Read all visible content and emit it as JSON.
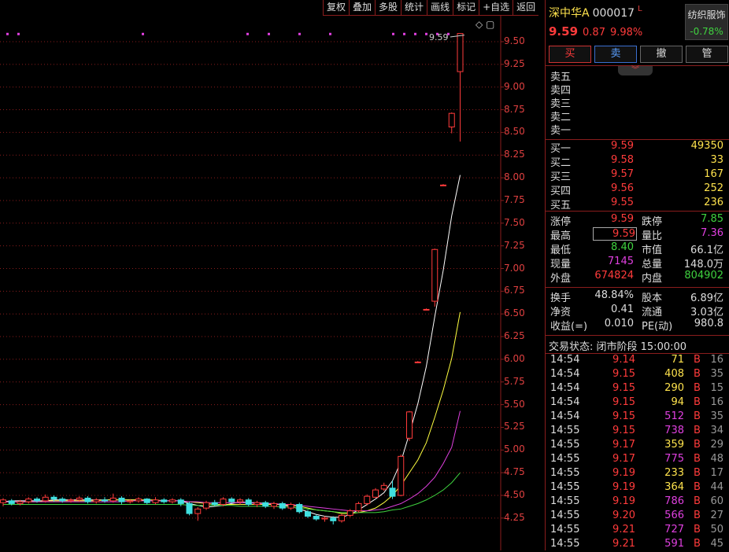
{
  "toolbar": [
    "复权",
    "叠加",
    "多股",
    "统计",
    "画线",
    "标记",
    "+自选",
    "返回"
  ],
  "axis": {
    "ticks": [
      "9.50",
      "9.25",
      "9.00",
      "8.75",
      "8.50",
      "8.25",
      "8.00",
      "7.75",
      "7.50",
      "7.25",
      "7.00",
      "6.75",
      "6.50",
      "6.25",
      "6.00",
      "5.75",
      "5.50",
      "5.25",
      "5.00",
      "4.75",
      "4.50",
      "4.25"
    ]
  },
  "chart": {
    "high_label": "9.59",
    "icons": "◇ ▢"
  },
  "chart_data": {
    "type": "candlestick",
    "ylim": [
      4.15,
      9.7
    ],
    "candles": [
      {
        "o": 4.42,
        "c": 4.45,
        "h": 4.47,
        "l": 4.38
      },
      {
        "o": 4.44,
        "c": 4.41,
        "h": 4.46,
        "l": 4.39
      },
      {
        "o": 4.41,
        "c": 4.43,
        "h": 4.45,
        "l": 4.39
      },
      {
        "o": 4.43,
        "c": 4.46,
        "h": 4.48,
        "l": 4.41
      },
      {
        "o": 4.46,
        "c": 4.44,
        "h": 4.48,
        "l": 4.42
      },
      {
        "o": 4.44,
        "c": 4.48,
        "h": 4.51,
        "l": 4.42
      },
      {
        "o": 4.48,
        "c": 4.46,
        "h": 4.5,
        "l": 4.43
      },
      {
        "o": 4.46,
        "c": 4.44,
        "h": 4.48,
        "l": 4.42
      },
      {
        "o": 4.44,
        "c": 4.45,
        "h": 4.47,
        "l": 4.42
      },
      {
        "o": 4.45,
        "c": 4.47,
        "h": 4.49,
        "l": 4.43
      },
      {
        "o": 4.47,
        "c": 4.43,
        "h": 4.49,
        "l": 4.41
      },
      {
        "o": 4.43,
        "c": 4.45,
        "h": 4.47,
        "l": 4.41
      },
      {
        "o": 4.45,
        "c": 4.44,
        "h": 4.48,
        "l": 4.42
      },
      {
        "o": 4.44,
        "c": 4.47,
        "h": 4.52,
        "l": 4.42
      },
      {
        "o": 4.47,
        "c": 4.43,
        "h": 4.49,
        "l": 4.4
      },
      {
        "o": 4.43,
        "c": 4.44,
        "h": 4.46,
        "l": 4.41
      },
      {
        "o": 4.44,
        "c": 4.46,
        "h": 4.48,
        "l": 4.42
      },
      {
        "o": 4.46,
        "c": 4.42,
        "h": 4.47,
        "l": 4.4
      },
      {
        "o": 4.42,
        "c": 4.45,
        "h": 4.48,
        "l": 4.4
      },
      {
        "o": 4.45,
        "c": 4.43,
        "h": 4.47,
        "l": 4.41
      },
      {
        "o": 4.43,
        "c": 4.45,
        "h": 4.47,
        "l": 4.41
      },
      {
        "o": 4.45,
        "c": 4.41,
        "h": 4.47,
        "l": 4.38
      },
      {
        "o": 4.41,
        "c": 4.3,
        "h": 4.43,
        "l": 4.28
      },
      {
        "o": 4.3,
        "c": 4.35,
        "h": 4.37,
        "l": 4.22
      },
      {
        "o": 4.36,
        "c": 4.42,
        "h": 4.44,
        "l": 4.34
      },
      {
        "o": 4.42,
        "c": 4.4,
        "h": 4.45,
        "l": 4.38
      },
      {
        "o": 4.4,
        "c": 4.46,
        "h": 4.48,
        "l": 4.38
      },
      {
        "o": 4.46,
        "c": 4.43,
        "h": 4.48,
        "l": 4.41
      },
      {
        "o": 4.43,
        "c": 4.45,
        "h": 4.47,
        "l": 4.4
      },
      {
        "o": 4.45,
        "c": 4.4,
        "h": 4.47,
        "l": 4.38
      },
      {
        "o": 4.4,
        "c": 4.42,
        "h": 4.44,
        "l": 4.37
      },
      {
        "o": 4.42,
        "c": 4.38,
        "h": 4.44,
        "l": 4.36
      },
      {
        "o": 4.38,
        "c": 4.41,
        "h": 4.43,
        "l": 4.35
      },
      {
        "o": 4.41,
        "c": 4.36,
        "h": 4.43,
        "l": 4.34
      },
      {
        "o": 4.36,
        "c": 4.4,
        "h": 4.42,
        "l": 4.34
      },
      {
        "o": 4.4,
        "c": 4.32,
        "h": 4.42,
        "l": 4.3
      },
      {
        "o": 4.32,
        "c": 4.27,
        "h": 4.34,
        "l": 4.25
      },
      {
        "o": 4.27,
        "c": 4.24,
        "h": 4.29,
        "l": 4.22
      },
      {
        "o": 4.24,
        "c": 4.25,
        "h": 4.27,
        "l": 4.21
      },
      {
        "o": 4.25,
        "c": 4.22,
        "h": 4.27,
        "l": 4.18
      },
      {
        "o": 4.22,
        "c": 4.28,
        "h": 4.3,
        "l": 4.2
      },
      {
        "o": 4.28,
        "c": 4.33,
        "h": 4.35,
        "l": 4.26
      },
      {
        "o": 4.33,
        "c": 4.41,
        "h": 4.43,
        "l": 4.31
      },
      {
        "o": 4.41,
        "c": 4.49,
        "h": 4.51,
        "l": 4.39
      },
      {
        "o": 4.48,
        "c": 4.56,
        "h": 4.58,
        "l": 4.47
      },
      {
        "o": 4.57,
        "c": 4.61,
        "h": 4.64,
        "l": 4.55
      },
      {
        "o": 4.58,
        "c": 4.49,
        "h": 4.66,
        "l": 4.46
      },
      {
        "o": 4.5,
        "c": 4.93,
        "h": 4.95,
        "l": 4.49
      },
      {
        "o": 5.13,
        "c": 5.42,
        "h": 5.43,
        "l": 5.1
      },
      {
        "o": 5.97,
        "c": 5.97,
        "h": 5.98,
        "l": 5.96
      },
      {
        "o": 6.55,
        "c": 6.55,
        "h": 6.56,
        "l": 6.54
      },
      {
        "o": 6.64,
        "c": 7.21,
        "h": 7.22,
        "l": 6.58
      },
      {
        "o": 7.92,
        "c": 7.92,
        "h": 7.93,
        "l": 7.91
      },
      {
        "o": 8.56,
        "c": 8.71,
        "h": 8.72,
        "l": 8.49
      },
      {
        "o": 9.17,
        "c": 9.59,
        "h": 9.59,
        "l": 8.4
      }
    ],
    "ma": [
      {
        "name": "MA5",
        "color": "#ffffff",
        "values": [
          4.43,
          4.44,
          4.44,
          4.44,
          4.44,
          4.44,
          4.45,
          4.45,
          4.45,
          4.45,
          4.45,
          4.45,
          4.45,
          4.45,
          4.45,
          4.45,
          4.45,
          4.44,
          4.44,
          4.44,
          4.44,
          4.44,
          4.41,
          4.39,
          4.37,
          4.38,
          4.39,
          4.41,
          4.43,
          4.42,
          4.42,
          4.41,
          4.41,
          4.39,
          4.38,
          4.35,
          4.32,
          4.29,
          4.27,
          4.26,
          4.26,
          4.29,
          4.34,
          4.4,
          4.46,
          4.53,
          4.66,
          4.87,
          5.18,
          5.51,
          5.92,
          6.47,
          6.98,
          7.58,
          8.03
        ]
      },
      {
        "name": "MA10",
        "color": "#ffff40",
        "values": [
          4.43,
          4.43,
          4.43,
          4.43,
          4.43,
          4.44,
          4.44,
          4.44,
          4.44,
          4.44,
          4.44,
          4.44,
          4.45,
          4.45,
          4.45,
          4.45,
          4.45,
          4.45,
          4.45,
          4.44,
          4.44,
          4.44,
          4.43,
          4.42,
          4.41,
          4.4,
          4.4,
          4.4,
          4.4,
          4.4,
          4.4,
          4.4,
          4.4,
          4.4,
          4.39,
          4.38,
          4.36,
          4.34,
          4.33,
          4.32,
          4.3,
          4.3,
          4.31,
          4.33,
          4.36,
          4.42,
          4.5,
          4.61,
          4.75,
          4.89,
          5.08,
          5.36,
          5.66,
          6.01,
          6.52
        ]
      },
      {
        "name": "MA20",
        "color": "#e040e0",
        "values": [
          4.43,
          4.43,
          4.43,
          4.43,
          4.43,
          4.43,
          4.43,
          4.43,
          4.43,
          4.43,
          4.43,
          4.43,
          4.43,
          4.43,
          4.43,
          4.44,
          4.44,
          4.44,
          4.44,
          4.44,
          4.44,
          4.44,
          4.43,
          4.43,
          4.42,
          4.42,
          4.42,
          4.42,
          4.42,
          4.42,
          4.41,
          4.41,
          4.41,
          4.4,
          4.4,
          4.39,
          4.38,
          4.37,
          4.36,
          4.35,
          4.34,
          4.33,
          4.33,
          4.33,
          4.34,
          4.35,
          4.38,
          4.41,
          4.46,
          4.52,
          4.6,
          4.7,
          4.85,
          5.03,
          5.43
        ]
      },
      {
        "name": "MA60",
        "color": "#3fd23f",
        "values": [
          4.4,
          4.4,
          4.4,
          4.4,
          4.4,
          4.4,
          4.4,
          4.4,
          4.4,
          4.4,
          4.4,
          4.4,
          4.4,
          4.4,
          4.4,
          4.4,
          4.4,
          4.4,
          4.4,
          4.4,
          4.4,
          4.4,
          4.39,
          4.39,
          4.39,
          4.39,
          4.39,
          4.39,
          4.38,
          4.38,
          4.38,
          4.38,
          4.38,
          4.37,
          4.37,
          4.36,
          4.35,
          4.34,
          4.33,
          4.32,
          4.31,
          4.31,
          4.31,
          4.31,
          4.31,
          4.32,
          4.34,
          4.35,
          4.38,
          4.41,
          4.45,
          4.5,
          4.56,
          4.64,
          4.75
        ]
      }
    ],
    "markers_y": 9.58
  },
  "stock": {
    "name": "深中华A",
    "code": "000017",
    "mark": "L",
    "price": "9.59",
    "change": "0.87",
    "pct": "9.98%"
  },
  "industry": {
    "name": "纺织服饰",
    "pct": "-0.78%"
  },
  "actions": [
    "买",
    "卖",
    "撤",
    "管"
  ],
  "sell_levels": [
    "卖五",
    "卖四",
    "卖三",
    "卖二",
    "卖一"
  ],
  "buy_levels": [
    {
      "label": "买一",
      "price": "9.59",
      "vol": "49350"
    },
    {
      "label": "买二",
      "price": "9.58",
      "vol": "33"
    },
    {
      "label": "买三",
      "price": "9.57",
      "vol": "167"
    },
    {
      "label": "买四",
      "price": "9.56",
      "vol": "252"
    },
    {
      "label": "买五",
      "price": "9.55",
      "vol": "236"
    }
  ],
  "stats1": [
    {
      "l1": "涨停",
      "v1": "9.59",
      "l2": "跌停",
      "v2": "7.85"
    },
    {
      "l1": "最高",
      "v1": "9.59",
      "l2": "量比",
      "v2": "7.36"
    },
    {
      "l1": "最低",
      "v1": "8.40",
      "l2": "市值",
      "v2": "66.1亿"
    },
    {
      "l1": "现量",
      "v1": "7145",
      "l2": "总量",
      "v2": "148.0万"
    },
    {
      "l1": "外盘",
      "v1": "674824",
      "l2": "内盘",
      "v2": "804902"
    }
  ],
  "stats2": [
    {
      "l1": "换手",
      "v1": "48.84%",
      "l2": "股本",
      "v2": "6.89亿"
    },
    {
      "l1": "净资",
      "v1": "0.41",
      "l2": "流通",
      "v2": "3.03亿"
    },
    {
      "l1": "收益(=)",
      "v1": "0.010",
      "l2": "PE(动)",
      "v2": "980.8"
    }
  ],
  "status": "交易状态: 闭市阶段 15:00:00",
  "ticks": [
    {
      "t": "14:54",
      "p": "9.14",
      "v": "71",
      "s": "B",
      "n": "16"
    },
    {
      "t": "14:54",
      "p": "9.15",
      "v": "408",
      "s": "B",
      "n": "35"
    },
    {
      "t": "14:54",
      "p": "9.15",
      "v": "290",
      "s": "B",
      "n": "15"
    },
    {
      "t": "14:54",
      "p": "9.15",
      "v": "94",
      "s": "B",
      "n": "16"
    },
    {
      "t": "14:54",
      "p": "9.15",
      "v": "512",
      "s": "B",
      "n": "35"
    },
    {
      "t": "14:55",
      "p": "9.15",
      "v": "738",
      "s": "B",
      "n": "34"
    },
    {
      "t": "14:55",
      "p": "9.17",
      "v": "359",
      "s": "B",
      "n": "29"
    },
    {
      "t": "14:55",
      "p": "9.17",
      "v": "775",
      "s": "B",
      "n": "48"
    },
    {
      "t": "14:55",
      "p": "9.19",
      "v": "233",
      "s": "B",
      "n": "17"
    },
    {
      "t": "14:55",
      "p": "9.19",
      "v": "364",
      "s": "B",
      "n": "44"
    },
    {
      "t": "14:55",
      "p": "9.19",
      "v": "786",
      "s": "B",
      "n": "60"
    },
    {
      "t": "14:55",
      "p": "9.20",
      "v": "566",
      "s": "B",
      "n": "27"
    },
    {
      "t": "14:55",
      "p": "9.21",
      "v": "727",
      "s": "B",
      "n": "50"
    },
    {
      "t": "14:55",
      "p": "9.21",
      "v": "591",
      "s": "B",
      "n": "45"
    }
  ],
  "colors": {
    "up": "#ff3b3b",
    "down": "#40e0e0",
    "grid": "#8a1d1d",
    "bg": "#000000"
  }
}
